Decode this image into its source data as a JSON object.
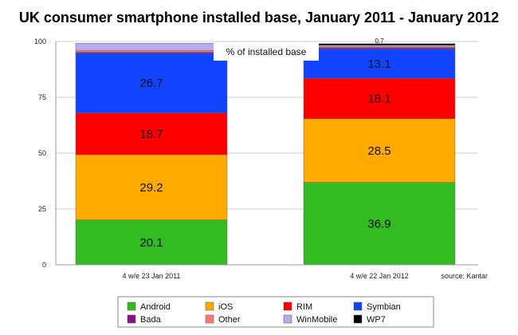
{
  "chart_data": {
    "type": "bar",
    "stacked": true,
    "title": "UK consumer smartphone installed base, January 2011 - January 2012",
    "ylabel": "% of installed base",
    "xlabel": "",
    "ylim": [
      0,
      100
    ],
    "yticks": [
      0,
      25,
      50,
      75,
      100
    ],
    "categories": [
      "4 w/e 23 Jan 2011",
      "4 w/e 22 Jan 2012"
    ],
    "source": "source: Kantar",
    "legend_position": "bottom",
    "series": [
      {
        "name": "Android",
        "color": "#33bb22",
        "values": [
          20.1,
          36.9
        ],
        "labels": [
          "20.1",
          "36.9"
        ]
      },
      {
        "name": "iOS",
        "color": "#ffaa00",
        "values": [
          29.2,
          28.5
        ],
        "labels": [
          "29.2",
          "28.5"
        ]
      },
      {
        "name": "RIM",
        "color": "#ff0000",
        "values": [
          18.7,
          18.1
        ],
        "labels": [
          "18.7",
          "18.1"
        ]
      },
      {
        "name": "Symbian",
        "color": "#1144ff",
        "values": [
          26.7,
          13.1
        ],
        "labels": [
          "26.7",
          "13.1"
        ]
      },
      {
        "name": "Bada",
        "color": "#881188",
        "values": [
          0.5,
          0.6
        ],
        "labels": [
          "",
          ""
        ]
      },
      {
        "name": "Other",
        "color": "#ff7777",
        "values": [
          0.8,
          0.5
        ],
        "labels": [
          "0.8",
          ""
        ]
      },
      {
        "name": "WinMobile",
        "color": "#bbaaee",
        "values": [
          3.2,
          0.6
        ],
        "labels": [
          "",
          ""
        ]
      },
      {
        "name": "WP7",
        "color": "#000000",
        "values": [
          0.0,
          0.7
        ],
        "labels": [
          "",
          "0.7"
        ]
      }
    ]
  }
}
